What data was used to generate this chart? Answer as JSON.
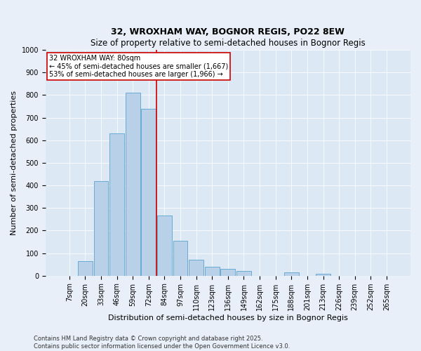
{
  "title": "32, WROXHAM WAY, BOGNOR REGIS, PO22 8EW",
  "subtitle": "Size of property relative to semi-detached houses in Bognor Regis",
  "xlabel": "Distribution of semi-detached houses by size in Bognor Regis",
  "ylabel": "Number of semi-detached properties",
  "categories": [
    "7sqm",
    "20sqm",
    "33sqm",
    "46sqm",
    "59sqm",
    "72sqm",
    "84sqm",
    "97sqm",
    "110sqm",
    "123sqm",
    "136sqm",
    "149sqm",
    "162sqm",
    "175sqm",
    "188sqm",
    "201sqm",
    "213sqm",
    "226sqm",
    "239sqm",
    "252sqm",
    "265sqm"
  ],
  "values": [
    0,
    65,
    420,
    630,
    810,
    740,
    265,
    155,
    70,
    40,
    30,
    20,
    0,
    0,
    15,
    0,
    10,
    0,
    0,
    0,
    0
  ],
  "bar_color": "#b8d0e8",
  "bar_edge_color": "#6aaad4",
  "marker_label": "32 WROXHAM WAY: 80sqm",
  "pct_smaller": "45% of semi-detached houses are smaller (1,667)",
  "pct_larger": "53% of semi-detached houses are larger (1,966)",
  "vline_color": "#cc0000",
  "annotation_box_color": "#cc0000",
  "vline_x_index": 5.5,
  "ylim": [
    0,
    1000
  ],
  "yticks": [
    0,
    100,
    200,
    300,
    400,
    500,
    600,
    700,
    800,
    900,
    1000
  ],
  "footer1": "Contains HM Land Registry data © Crown copyright and database right 2025.",
  "footer2": "Contains public sector information licensed under the Open Government Licence v3.0.",
  "bg_color": "#e8eff8",
  "plot_bg_color": "#dce8f4",
  "title_fontsize": 9,
  "axis_label_fontsize": 8,
  "tick_fontsize": 7,
  "annotation_fontsize": 7,
  "footer_fontsize": 6
}
